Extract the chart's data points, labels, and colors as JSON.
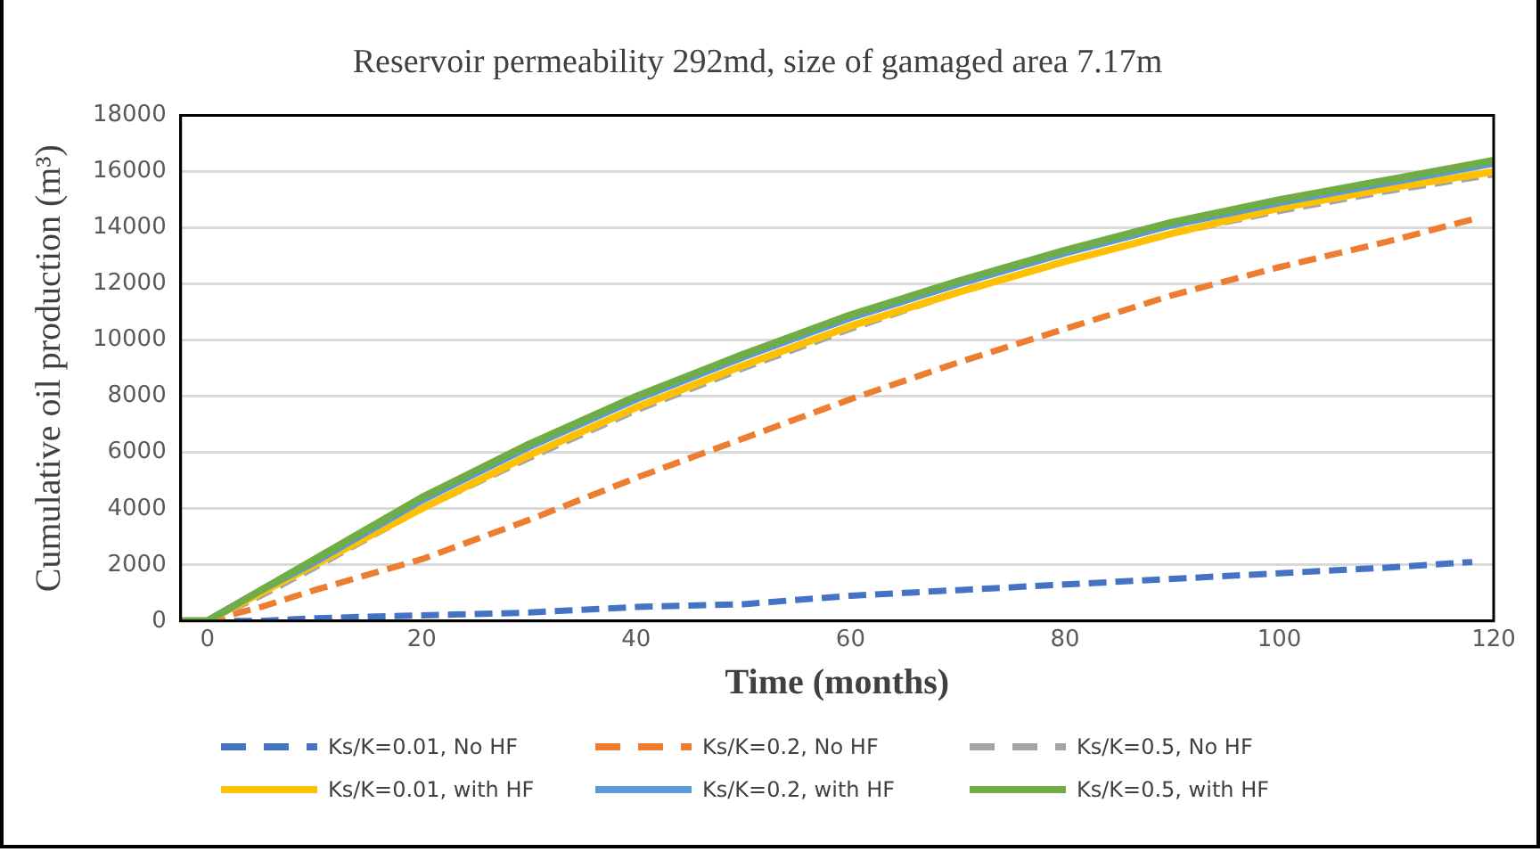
{
  "chart_data": {
    "type": "line",
    "title": "Reservoir permeability 292md, size of gamaged area 7.17m",
    "xlabel": "Time (months)",
    "ylabel": "Cumulative oil production (m³)",
    "x": [
      -2.5,
      0,
      5,
      10,
      20,
      30,
      40,
      50,
      60,
      70,
      80,
      90,
      100,
      110,
      120
    ],
    "series": [
      {
        "name": "Ks/K=0.01, No HF",
        "color": "#4472c4",
        "line_style": "dashed",
        "x": [
          -2.5,
          0,
          5,
          10,
          20,
          30,
          40,
          50,
          60,
          70,
          80,
          90,
          100,
          110,
          118
        ],
        "values": [
          0,
          0,
          0,
          100,
          200,
          300,
          500,
          600,
          900,
          1100,
          1300,
          1500,
          1700,
          1900,
          2100
        ]
      },
      {
        "name": "Ks/K=0.2, No HF",
        "color": "#ed7d31",
        "line_style": "dashed",
        "x": [
          -2.5,
          0,
          5,
          10,
          20,
          30,
          40,
          50,
          60,
          70,
          80,
          90,
          100,
          110,
          118
        ],
        "values": [
          0,
          0,
          500,
          1100,
          2200,
          3600,
          5100,
          6500,
          7900,
          9200,
          10400,
          11600,
          12600,
          13500,
          14300
        ]
      },
      {
        "name": "Ks/K=0.5, No HF",
        "color": "#a5a5a5",
        "line_style": "dashed",
        "values": [
          0,
          0,
          900,
          1900,
          4000,
          5800,
          7500,
          9000,
          10400,
          11700,
          12800,
          13800,
          14600,
          15300,
          15900
        ]
      },
      {
        "name": "Ks/K=0.01, with HF",
        "color": "#ffc000",
        "line_style": "solid",
        "values": [
          0,
          0,
          1000,
          2000,
          4000,
          5900,
          7600,
          9100,
          10500,
          11700,
          12800,
          13800,
          14700,
          15400,
          16000
        ]
      },
      {
        "name": "Ks/K=0.2, with HF",
        "color": "#5b9bd5",
        "line_style": "solid",
        "values": [
          0,
          0,
          1100,
          2100,
          4300,
          6200,
          7900,
          9400,
          10800,
          12000,
          13100,
          14100,
          14900,
          15600,
          16300
        ]
      },
      {
        "name": "Ks/K=0.5, with HF",
        "color": "#70ad47",
        "line_style": "solid",
        "values": [
          0,
          0,
          1100,
          2200,
          4400,
          6300,
          8000,
          9500,
          10900,
          12100,
          13200,
          14200,
          15000,
          15700,
          16400
        ]
      }
    ],
    "xlim": [
      -2.5,
      120
    ],
    "xticks": [
      0,
      20,
      40,
      60,
      80,
      100,
      120
    ],
    "ylim": [
      0,
      18000
    ],
    "yticks": [
      0,
      2000,
      4000,
      6000,
      8000,
      10000,
      12000,
      14000,
      16000,
      18000
    ],
    "grid": "y",
    "legend": "bottom",
    "marker": "none"
  }
}
